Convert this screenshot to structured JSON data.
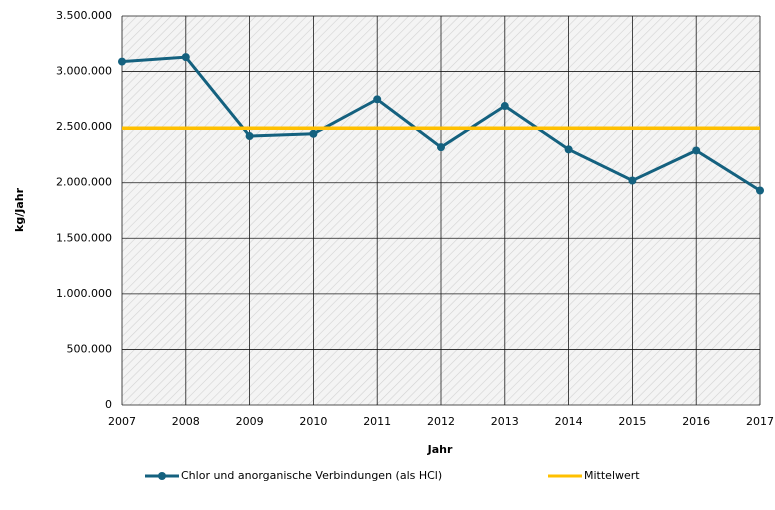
{
  "chart_data": {
    "type": "line",
    "categories": [
      "2007",
      "2008",
      "2009",
      "2010",
      "2011",
      "2012",
      "2013",
      "2014",
      "2015",
      "2016",
      "2017"
    ],
    "series": [
      {
        "name": "Chlor und anorganische Verbindungen (als HCl)",
        "color": "#14617f",
        "marker": true,
        "values": [
          3090000,
          3130000,
          2420000,
          2440000,
          2750000,
          2320000,
          2690000,
          2300000,
          2020000,
          2290000,
          1930000
        ]
      },
      {
        "name": "Mittelwert",
        "color": "#ffc000",
        "marker": false,
        "values": [
          2490000,
          2490000,
          2490000,
          2490000,
          2490000,
          2490000,
          2490000,
          2490000,
          2490000,
          2490000,
          2490000
        ]
      }
    ],
    "ylim": [
      0,
      3500000
    ],
    "yticks": [
      0,
      {
        "value": 500000,
        "label": "500.000"
      },
      {
        "value": 1000000,
        "label": "1.000.000"
      },
      {
        "value": 1500000,
        "label": "1.500.000"
      },
      {
        "value": 2000000,
        "label": "2.000.000"
      },
      {
        "value": 2500000,
        "label": "2.500.000"
      },
      {
        "value": 3000000,
        "label": "3.000.000"
      },
      {
        "value": 3500000,
        "label": "3.500.000"
      }
    ],
    "xlabel": "Jahr",
    "ylabel": "kg/Jahr",
    "grid": true,
    "legend": "bottom"
  }
}
